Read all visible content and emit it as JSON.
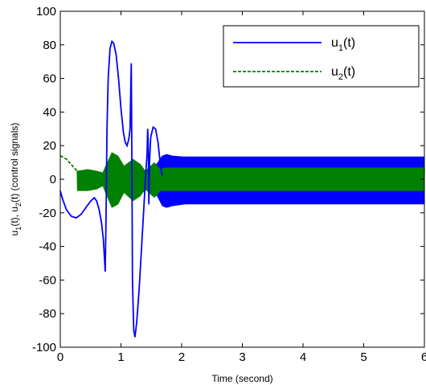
{
  "chart_data": {
    "type": "line",
    "xlabel": "Time  (second)",
    "ylabel": "u₁(t), u₂(t) (control signals)",
    "ylabel_parts": {
      "a": "u",
      "a_sub": "1",
      "b": "(t), u",
      "b_sub": "2",
      "c": "(t) (control signals)"
    },
    "xlim": [
      0,
      6
    ],
    "ylim": [
      -100,
      100
    ],
    "x_ticks": [
      "0",
      "1",
      "2",
      "3",
      "4",
      "5",
      "6"
    ],
    "y_ticks": [
      "100",
      "80",
      "60",
      "40",
      "20",
      "0",
      "-20",
      "-40",
      "-60",
      "-80",
      "-100"
    ],
    "grid": false,
    "legend_position": "top-right",
    "series": [
      {
        "name": "u1(t)",
        "legend_label": {
          "base": "u",
          "sub": "1",
          "suffix": "(t)"
        },
        "color": "#0000ff",
        "style": "solid",
        "points": [
          [
            0,
            -7
          ],
          [
            0.04,
            -12
          ],
          [
            0.1,
            -18
          ],
          [
            0.18,
            -22
          ],
          [
            0.26,
            -23
          ],
          [
            0.34,
            -21
          ],
          [
            0.42,
            -17
          ],
          [
            0.5,
            -13
          ],
          [
            0.56,
            -11
          ],
          [
            0.6,
            -13
          ],
          [
            0.64,
            -18
          ],
          [
            0.68,
            -26
          ],
          [
            0.71,
            -36
          ],
          [
            0.73,
            -48
          ],
          [
            0.74,
            -55
          ],
          [
            0.755,
            -20
          ],
          [
            0.77,
            30
          ],
          [
            0.79,
            60
          ],
          [
            0.82,
            78
          ],
          [
            0.85,
            82
          ],
          [
            0.88,
            81
          ],
          [
            0.92,
            74
          ],
          [
            0.96,
            60
          ],
          [
            1.0,
            42
          ],
          [
            1.04,
            28
          ],
          [
            1.07,
            22
          ],
          [
            1.1,
            20
          ],
          [
            1.13,
            24
          ],
          [
            1.15,
            30
          ],
          [
            1.16,
            50
          ],
          [
            1.17,
            69
          ],
          [
            1.18,
            10
          ],
          [
            1.19,
            -60
          ],
          [
            1.21,
            -90
          ],
          [
            1.23,
            -94
          ],
          [
            1.26,
            -85
          ],
          [
            1.3,
            -65
          ],
          [
            1.34,
            -40
          ],
          [
            1.38,
            -15
          ],
          [
            1.41,
            5
          ],
          [
            1.43,
            15
          ],
          [
            1.44,
            30
          ],
          [
            1.45,
            20
          ],
          [
            1.46,
            -15
          ],
          [
            1.47,
            10
          ],
          [
            1.49,
            25
          ],
          [
            1.53,
            31
          ],
          [
            1.57,
            30
          ],
          [
            1.61,
            22
          ],
          [
            1.64,
            12
          ],
          [
            1.66,
            6
          ],
          [
            1.68,
            2
          ]
        ],
        "oscillation": {
          "start": 0.3,
          "end": 6,
          "envelope": [
            [
              0.3,
              0
            ],
            [
              0.6,
              0
            ],
            [
              0.9,
              0
            ],
            [
              1.45,
              2
            ],
            [
              1.68,
              14
            ],
            [
              1.75,
              15
            ],
            [
              1.85,
              14
            ],
            [
              2.05,
              13.5
            ],
            [
              6,
              13.5
            ]
          ],
          "lower_envelope": [
            [
              0.3,
              0
            ],
            [
              1.45,
              0
            ],
            [
              1.68,
              -16
            ],
            [
              1.75,
              -17
            ],
            [
              1.85,
              -16
            ],
            [
              2.05,
              -15
            ],
            [
              6,
              -15
            ]
          ]
        }
      },
      {
        "name": "u2(t)",
        "legend_label": {
          "base": "u",
          "sub": "2",
          "suffix": "(t)"
        },
        "color": "#008000",
        "style": "dashed",
        "points": [
          [
            0,
            14
          ],
          [
            0.05,
            13
          ],
          [
            0.1,
            12
          ],
          [
            0.15,
            10
          ],
          [
            0.2,
            8
          ],
          [
            0.25,
            6
          ],
          [
            0.28,
            5
          ]
        ],
        "oscillation": {
          "start": 0.28,
          "end": 6,
          "envelope": [
            [
              0.28,
              5
            ],
            [
              0.45,
              6
            ],
            [
              0.6,
              5
            ],
            [
              0.7,
              4
            ],
            [
              0.85,
              16
            ],
            [
              0.95,
              14
            ],
            [
              1.05,
              8
            ],
            [
              1.2,
              12
            ],
            [
              1.32,
              9
            ],
            [
              1.4,
              5
            ],
            [
              1.55,
              10
            ],
            [
              1.65,
              6
            ],
            [
              1.75,
              7
            ],
            [
              6,
              7
            ]
          ],
          "lower_envelope": [
            [
              0.28,
              -7
            ],
            [
              0.45,
              -7
            ],
            [
              0.6,
              -6
            ],
            [
              0.7,
              -4
            ],
            [
              0.85,
              -17
            ],
            [
              0.95,
              -15
            ],
            [
              1.05,
              -8
            ],
            [
              1.2,
              -13
            ],
            [
              1.32,
              -10
            ],
            [
              1.4,
              -6
            ],
            [
              1.55,
              -11
            ],
            [
              1.65,
              -7
            ],
            [
              1.75,
              -7
            ],
            [
              6,
              -7
            ]
          ]
        }
      }
    ]
  }
}
